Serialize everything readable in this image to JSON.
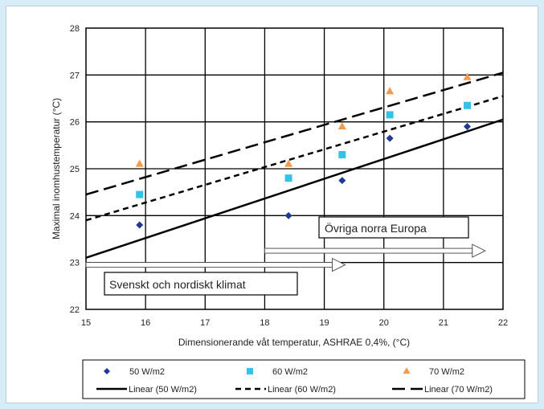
{
  "chart_data": {
    "type": "scatter",
    "xlabel": "Dimensionerande våt temperatur, ASHRAE 0,4%, (°C)",
    "ylabel": "Maximal inomhustemperatur (°C)",
    "xlim": [
      15,
      22
    ],
    "ylim": [
      22,
      28
    ],
    "xticks": [
      "15",
      "16",
      "17",
      "18",
      "19",
      "20",
      "21",
      "22"
    ],
    "yticks": [
      "22",
      "23",
      "24",
      "25",
      "26",
      "27",
      "28"
    ],
    "grid": true,
    "legend_position": "bottom",
    "series": [
      {
        "name": "50 W/m2",
        "marker": "diamond",
        "color": "#1f3a93",
        "points": [
          [
            15.9,
            23.8
          ],
          [
            18.4,
            24.0
          ],
          [
            19.3,
            24.75
          ],
          [
            20.1,
            25.65
          ],
          [
            21.4,
            25.9
          ]
        ]
      },
      {
        "name": "60 W/m2",
        "marker": "square",
        "color": "#33c3e6",
        "points": [
          [
            15.9,
            24.45
          ],
          [
            18.4,
            24.8
          ],
          [
            19.3,
            25.3
          ],
          [
            20.1,
            26.15
          ],
          [
            21.4,
            26.35
          ]
        ]
      },
      {
        "name": "70 W/m2",
        "marker": "triangle",
        "color": "#f39b4b",
        "points": [
          [
            15.9,
            25.1
          ],
          [
            18.4,
            25.1
          ],
          [
            19.3,
            25.9
          ],
          [
            20.1,
            26.65
          ],
          [
            21.4,
            26.95
          ]
        ]
      }
    ],
    "trendlines": [
      {
        "name": "Linear (50 W/m2)",
        "style": "solid",
        "from": [
          15,
          23.1
        ],
        "to": [
          22,
          26.05
        ]
      },
      {
        "name": "Linear (60 W/m2)",
        "style": "short-dash",
        "from": [
          15,
          23.9
        ],
        "to": [
          22,
          26.55
        ]
      },
      {
        "name": "Linear (70 W/m2)",
        "style": "long-dash",
        "from": [
          15,
          24.45
        ],
        "to": [
          22,
          27.05
        ]
      }
    ],
    "annotations": [
      {
        "text": "Övriga norra Europa",
        "arrow_from_x": 18.0,
        "arrow_to_x": 21.7,
        "arrow_y": 23.25
      },
      {
        "text": "Svenskt och nordiskt klimat",
        "arrow_from_x": 15.0,
        "arrow_to_x": 19.35,
        "arrow_y": 22.95
      }
    ]
  }
}
